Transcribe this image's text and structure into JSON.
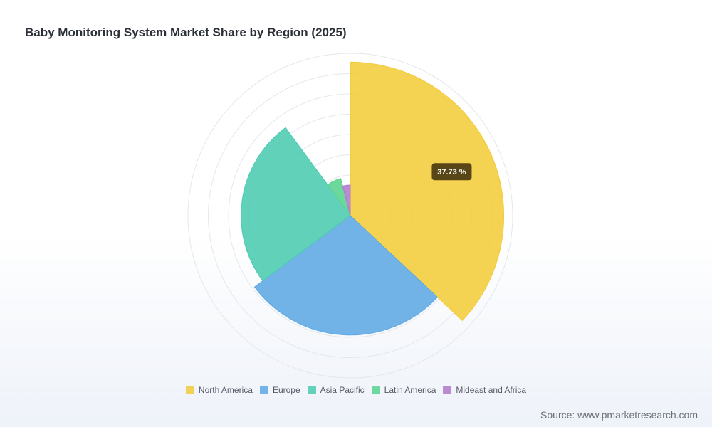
{
  "title": "Baby Monitoring System Market Share by Region (2025)",
  "source": "Source: www.pmarketresearch.com",
  "tooltip": {
    "text": "37.73 %",
    "background": "#4a3a12",
    "color": "#ffffff"
  },
  "chart_data": {
    "type": "pie",
    "variant": "nightingale-rose",
    "title": "Baby Monitoring System Market Share by Region (2025)",
    "unit": "%",
    "grid": true,
    "legend_position": "bottom",
    "series": [
      {
        "name": "North America",
        "value": 37.73,
        "color": "#f2cc3a"
      },
      {
        "name": "Europe",
        "value": 28.4,
        "color": "#5ea8e4"
      },
      {
        "name": "Asia Pacific",
        "value": 25.6,
        "color": "#4ccbb0"
      },
      {
        "name": "Latin America",
        "value": 6.2,
        "color": "#58d38e"
      },
      {
        "name": "Mideast and Africa",
        "value": 4.1,
        "color": "#b07acc"
      }
    ]
  }
}
